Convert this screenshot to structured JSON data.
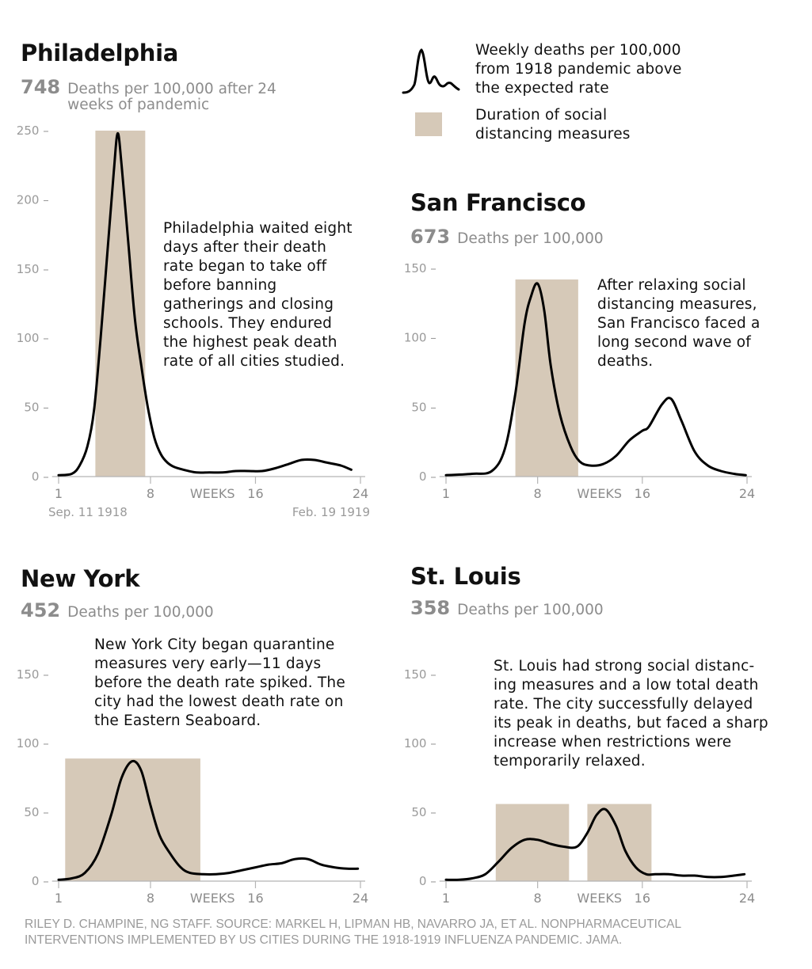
{
  "legend": {
    "line_label": "Weekly deaths per 100,000 from 1918 pandemic above the expected rate",
    "box_label": "Duration of social distancing measures",
    "box_color": "#d6c9b8",
    "line_color": "#000000"
  },
  "credit": "RILEY D. CHAMPINE, NG STAFF. SOURCE: MARKEL H, LIPMAN HB, NAVARRO JA, ET AL. NONPHARMACEUTICAL INTERVENTIONS IMPLEMENTED BY US CITIES DURING THE 1918-1919 INFLUENZA PANDEMIC. JAMA.",
  "panels": [
    {
      "city": "Philadelphia",
      "stat_value": "748",
      "stat_label": "Deaths per 100,000 after 24 weeks of pandemic",
      "note": "Philadelphia waited eight days after their death rate began to take off before banning gatherings and closing schools. They endured the highest peak death rate of all cities studied."
    },
    {
      "city": "San Francisco",
      "stat_value": "673",
      "stat_label": "Deaths per 100,000",
      "note": "After relaxing social distancing measures, San Francisco faced a long second wave of deaths."
    },
    {
      "city": "New York",
      "stat_value": "452",
      "stat_label": "Deaths per 100,000",
      "note": "New York City began quarantine measures very early—11 days before the death rate spiked. The city had the lowest death rate on the Eastern Seaboard."
    },
    {
      "city": "St. Louis",
      "stat_value": "358",
      "stat_label": "Deaths per 100,000",
      "note": "St. Louis had strong social distanc-ing measures and a low total death rate. The city successfully delayed its peak in deaths, but faced a sharp increase when restrictions were temporarily relaxed."
    }
  ],
  "chart_data": [
    {
      "type": "line",
      "name": "Philadelphia",
      "xlim": [
        0.5,
        24
      ],
      "ylim": [
        0,
        250
      ],
      "yticks": [
        0,
        50,
        100,
        150,
        200,
        250
      ],
      "xticks": [
        1,
        8,
        16,
        24
      ],
      "xtick_word": "WEEKS",
      "xtick_word_at": 12,
      "date_start": "Sep. 11 1918",
      "date_end": "Feb. 19 1919",
      "shade": [
        [
          3.8,
          7.6
        ]
      ],
      "shade_top": 250,
      "x": [
        1,
        2,
        2.6,
        3.2,
        3.7,
        4.2,
        4.7,
        5.2,
        5.5,
        5.8,
        6.3,
        6.8,
        7.3,
        7.8,
        8.3,
        8.8,
        9.3,
        9.8,
        10.5,
        11.5,
        12.5,
        13.5,
        14.5,
        15.5,
        16.5,
        17.5,
        18.5,
        19.5,
        20.5,
        21.5,
        22.5,
        23.3
      ],
      "y": [
        1,
        2,
        8,
        22,
        48,
        100,
        160,
        220,
        248,
        225,
        170,
        115,
        80,
        50,
        28,
        16,
        10,
        7,
        5,
        3,
        3,
        3,
        4,
        4,
        4,
        6,
        9,
        12,
        12,
        10,
        8,
        5
      ]
    },
    {
      "type": "line",
      "name": "San Francisco",
      "xlim": [
        0.5,
        24
      ],
      "ylim": [
        0,
        150
      ],
      "yticks": [
        0,
        50,
        100,
        150
      ],
      "xticks": [
        1,
        8,
        16,
        24
      ],
      "xtick_word": "WEEKS",
      "xtick_word_at": 12,
      "shade": [
        [
          6.3,
          11.1
        ]
      ],
      "shade_top": 142,
      "x": [
        1,
        3,
        4.5,
        5.5,
        6.3,
        7,
        7.5,
        8,
        8.5,
        9,
        9.7,
        10.5,
        11.2,
        12,
        13,
        14,
        15,
        16,
        16.5,
        17.5,
        18.2,
        19,
        20,
        21,
        22,
        23,
        23.9
      ],
      "y": [
        1,
        2,
        4,
        20,
        60,
        110,
        130,
        139,
        120,
        80,
        45,
        22,
        11,
        8,
        9,
        15,
        26,
        33,
        36,
        52,
        56,
        40,
        18,
        8,
        4,
        2,
        1
      ]
    },
    {
      "type": "line",
      "name": "New York",
      "xlim": [
        0.5,
        24
      ],
      "ylim": [
        0,
        150
      ],
      "yticks": [
        0,
        50,
        100,
        150
      ],
      "xticks": [
        1,
        8,
        16,
        24
      ],
      "xtick_word": "WEEKS",
      "xtick_word_at": 12,
      "shade": [
        [
          1.5,
          11.8
        ]
      ],
      "shade_top": 89,
      "x": [
        1,
        2,
        3,
        4,
        5,
        5.8,
        6.6,
        7.3,
        8,
        8.7,
        9.5,
        10.3,
        11,
        12,
        13,
        14,
        15,
        16,
        17,
        18,
        19,
        20,
        21,
        22,
        23,
        23.8
      ],
      "y": [
        1,
        2,
        6,
        20,
        48,
        75,
        87,
        80,
        55,
        33,
        20,
        10,
        6,
        5,
        5,
        6,
        8,
        10,
        12,
        13,
        16,
        16,
        12,
        10,
        9,
        9
      ]
    },
    {
      "type": "line",
      "name": "St. Louis",
      "xlim": [
        0.5,
        24
      ],
      "ylim": [
        0,
        150
      ],
      "yticks": [
        0,
        50,
        100,
        150
      ],
      "xticks": [
        1,
        8,
        16,
        24
      ],
      "xtick_word": "WEEKS",
      "xtick_word_at": 12,
      "shade": [
        [
          4.8,
          10.4
        ],
        [
          11.8,
          16.7
        ]
      ],
      "shade_top": 56,
      "x": [
        1,
        2,
        3,
        4,
        5,
        6,
        7,
        8,
        9,
        10,
        11,
        11.8,
        12.5,
        13.2,
        14,
        14.7,
        15.5,
        16.3,
        17,
        18,
        19,
        20,
        21,
        22,
        23,
        23.8
      ],
      "y": [
        1,
        1,
        2,
        5,
        14,
        24,
        30,
        30,
        27,
        25,
        25,
        35,
        48,
        52,
        40,
        22,
        10,
        5,
        5,
        5,
        4,
        4,
        3,
        3,
        4,
        5
      ]
    }
  ]
}
